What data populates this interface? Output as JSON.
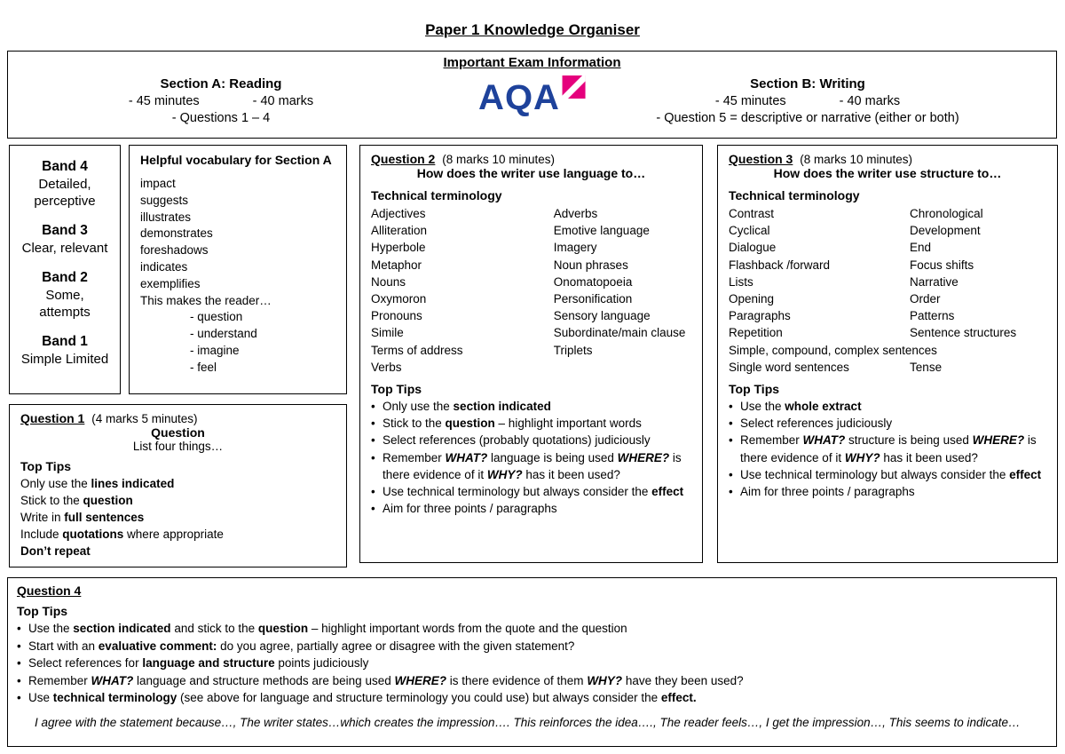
{
  "colors": {
    "aqa-blue": "#1e429b",
    "aqa-magenta": "#e5007d"
  },
  "title": "Paper 1 Knowledge Organiser",
  "exam_info": {
    "heading": "Important Exam Information",
    "section_a": {
      "title": "Section A: Reading",
      "minutes": "- 45 minutes",
      "marks": "- 40 marks",
      "questions": "- Questions 1 – 4"
    },
    "logo_text": "AQA",
    "section_b": {
      "title": "Section B: Writing",
      "minutes": "- 45 minutes",
      "marks": "- 40 marks",
      "questions": "- Question 5 = descriptive or narrative (either or both)"
    }
  },
  "bands": [
    {
      "name": "Band 4",
      "desc": "Detailed, perceptive"
    },
    {
      "name": "Band 3",
      "desc": "Clear, relevant"
    },
    {
      "name": "Band 2",
      "desc": "Some, attempts"
    },
    {
      "name": "Band 1",
      "desc": "Simple Limited"
    }
  ],
  "vocab": {
    "title": "Helpful vocabulary for Section A",
    "words": [
      "impact",
      "suggests",
      "illustrates",
      "demonstrates",
      "foreshadows",
      "indicates",
      "exemplifies",
      "This makes the reader…"
    ],
    "reader_effects": [
      "- question",
      "- understand",
      "- imagine",
      "- feel"
    ]
  },
  "q1": {
    "title": "Question 1",
    "meta": "(4 marks  5 minutes)",
    "subheading": "Question",
    "subtext": "List four things…",
    "tips_title": "Top Tips",
    "tips": [
      "Only use the **lines indicated**",
      "Stick to the **question**",
      "Write in **full sentences**",
      "Include **quotations** where appropriate",
      "**Don’t repeat**"
    ]
  },
  "q2": {
    "title": "Question 2",
    "meta": "(8 marks  10 minutes)",
    "subheading": "How does the writer use language to…",
    "terminology_title": "Technical terminology",
    "terms_left": [
      "Adjectives",
      "Alliteration",
      "Hyperbole",
      "Metaphor",
      "Nouns",
      "Oxymoron",
      "Pronouns",
      "Simile",
      "Terms of address",
      "Verbs"
    ],
    "terms_right": [
      "Adverbs",
      "Emotive language",
      "Imagery",
      "Noun phrases",
      "Onomatopoeia",
      "Personification",
      "Sensory language",
      "Subordinate/main clause",
      "Triplets"
    ],
    "tips_title": "Top Tips",
    "tips": [
      "Only use the **section indicated**",
      "Stick to the **question** – highlight important words",
      "Select references (probably quotations) judiciously",
      "Remember ***WHAT?*** language is being used ***WHERE?*** is there evidence of it ***WHY?*** has it been used?",
      "Use technical terminology but always consider the **effect**",
      "Aim for three points / paragraphs"
    ]
  },
  "q3": {
    "title": "Question 3",
    "meta": "(8 marks  10 minutes)",
    "subheading": "How does the writer use structure to…",
    "terminology_title": "Technical terminology",
    "terms_left": [
      "Contrast",
      "Cyclical",
      "Dialogue",
      "Flashback /forward",
      "Lists",
      "Opening",
      "Paragraphs",
      "Repetition"
    ],
    "terms_right": [
      "Chronological",
      "Development",
      "End",
      "Focus shifts",
      "Narrative",
      "Order",
      "Patterns",
      "Sentence structures"
    ],
    "terms_full": "Simple, compound, complex sentences",
    "terms_last_left": "Single word sentences",
    "terms_last_right": "Tense",
    "tips_title": "Top Tips",
    "tips": [
      "Use the **whole extract**",
      "Select references judiciously",
      "Remember ***WHAT?*** structure is being used ***WHERE?*** is there evidence of it ***WHY?*** has it been used?",
      "Use technical terminology but always consider the **effect**",
      "Aim for three points / paragraphs"
    ]
  },
  "q4": {
    "title": "Question 4",
    "tips_title": "Top Tips",
    "tips": [
      "Use the **section indicated** and stick to the **question** – highlight important words from the quote and the question",
      "Start with an **evaluative comment:** do you agree, partially agree or disagree with the given statement?",
      "Select references for **language and structure** points judiciously",
      "Remember ***WHAT?*** language and structure methods are being used ***WHERE?*** is there evidence of them ***WHY?*** have they been used?",
      "Use **technical terminology** (see above for language and structure terminology you could use) but always consider the **effect.**"
    ],
    "sentence_starters": "I agree with the statement because…, The writer states…which creates the impression…. This reinforces the idea…., The reader feels…, I get the impression…, This seems to indicate…"
  }
}
